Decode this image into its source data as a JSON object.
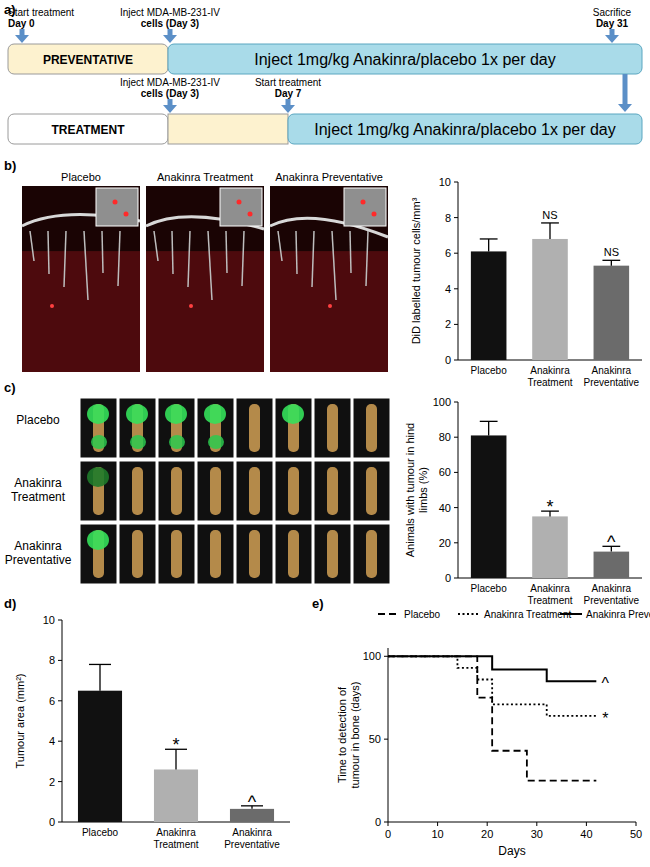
{
  "panel_labels": [
    "a)",
    "b)",
    "c)",
    "d)",
    "e)"
  ],
  "timeline": {
    "rows": [
      {
        "label": "PREVENTATIVE",
        "bar": "Inject 1mg/kg Anakinra/placebo 1x per day",
        "events": [
          [
            "Start treatment",
            "Day 0"
          ],
          [
            "Inject MDA-MB-231-IV",
            "cells (Day 3)"
          ],
          [
            "Sacrifice",
            "Day 31"
          ]
        ]
      },
      {
        "label": "TREATMENT",
        "bar": "Inject 1mg/kg Anakinra/placebo 1x per day",
        "events": [
          [
            "Inject MDA-MB-231-IV",
            "cells (Day 3)"
          ],
          [
            "Start treatment",
            "Day 7"
          ]
        ]
      }
    ]
  },
  "images": {
    "b": [
      "Placebo",
      "Anakinra Treatment",
      "Anakinra Preventative"
    ],
    "c": [
      "Placebo",
      "Anakinra Treatment",
      "Anakinra Preventative"
    ]
  },
  "chart_data": [
    {
      "type": "bar",
      "y_label": [
        "DiD labelled tumour cells/mm³"
      ],
      "categories": [
        "Placebo",
        "Anakinra Treatment",
        "Anakinra Preventative"
      ],
      "values": [
        6.1,
        6.8,
        5.3
      ],
      "errors": [
        0.7,
        0.9,
        0.3
      ],
      "annotations": [
        null,
        "NS",
        "NS"
      ],
      "colors": [
        "#111111",
        "#b0b0b0",
        "#6b6b6b"
      ],
      "ylim": [
        0,
        10
      ],
      "yticks": [
        0,
        2,
        4,
        6,
        8,
        10
      ]
    },
    {
      "type": "bar",
      "y_label": [
        "Animals with tumour in hind",
        "limbs (%)"
      ],
      "categories": [
        "Placebo",
        "Anakinra Treatment",
        "Anakinra Preventative"
      ],
      "values": [
        81,
        35,
        15
      ],
      "errors": [
        8,
        3,
        3
      ],
      "annotations": [
        null,
        "*",
        "^"
      ],
      "colors": [
        "#111111",
        "#b0b0b0",
        "#6b6b6b"
      ],
      "ylim": [
        0,
        100
      ],
      "yticks": [
        0,
        20,
        40,
        60,
        80,
        100
      ]
    },
    {
      "type": "bar",
      "y_label": [
        "Tumour area (mm²)"
      ],
      "categories": [
        "Placebo",
        "Anakinra Treatment",
        "Anakinra Preventative"
      ],
      "values": [
        6.5,
        2.6,
        0.65
      ],
      "errors": [
        1.3,
        1.0,
        0.15
      ],
      "annotations": [
        null,
        "*",
        "^"
      ],
      "colors": [
        "#111111",
        "#b0b0b0",
        "#6b6b6b"
      ],
      "ylim": [
        0,
        10
      ],
      "yticks": [
        0,
        2,
        4,
        6,
        8,
        10
      ]
    },
    {
      "type": "step",
      "y_label": [
        "Time to detection of",
        "tumour in bone (days)"
      ],
      "x_label": "Days",
      "legend": "top",
      "x": [
        0,
        14,
        18,
        21,
        28,
        32,
        42
      ],
      "series": [
        {
          "name": "Placebo",
          "color": "#000000",
          "line_style": "dashed",
          "values": [
            100,
            100,
            75,
            43,
            25,
            25,
            25
          ]
        },
        {
          "name": "Anakinra Treatment",
          "color": "#000000",
          "line_style": "dotted",
          "values": [
            100,
            93,
            86,
            71,
            71,
            64,
            64
          ],
          "annotation": "*"
        },
        {
          "name": "Anakinra Preventative",
          "color": "#000000",
          "line_style": "solid",
          "values": [
            100,
            100,
            100,
            92,
            92,
            85,
            85
          ],
          "annotation": "^"
        }
      ],
      "xlim": [
        0,
        50
      ],
      "xticks": [
        0,
        10,
        20,
        30,
        40,
        50
      ],
      "ylim": [
        0,
        105
      ],
      "yticks": [
        0,
        50,
        100
      ]
    }
  ]
}
